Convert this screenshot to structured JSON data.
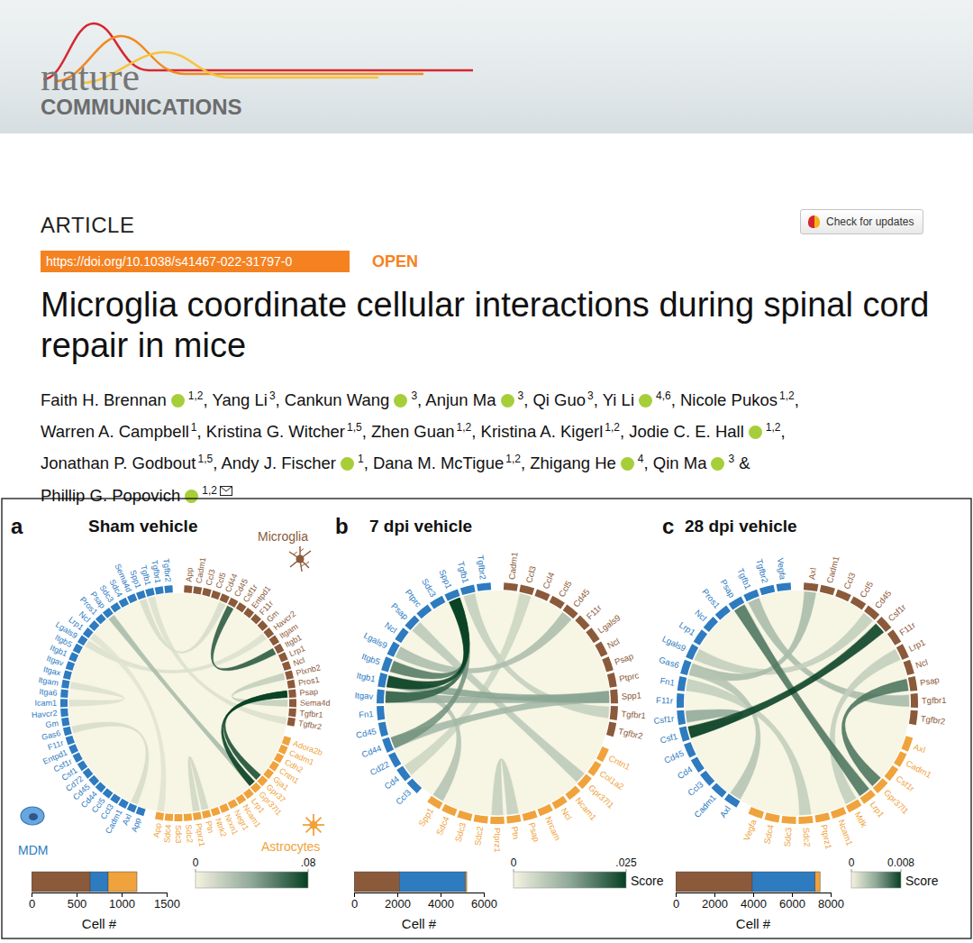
{
  "header": {
    "journal_name": "nature",
    "journal_subtitle": "COMMUNICATIONS",
    "article_type": "ARTICLE",
    "doi": "https://doi.org/10.1038/s41467-022-31797-0",
    "access": "OPEN",
    "update_button": "Check for updates",
    "title": "Microglia coordinate cellular interactions during spinal cord repair in mice",
    "authors": [
      {
        "name": "Faith H. Brennan",
        "orcid": true,
        "affiliations": "1,2"
      },
      {
        "name": "Yang Li",
        "orcid": false,
        "affiliations": "3"
      },
      {
        "name": "Cankun Wang",
        "orcid": true,
        "affiliations": "3"
      },
      {
        "name": "Anjun Ma",
        "orcid": true,
        "affiliations": "3"
      },
      {
        "name": "Qi Guo",
        "orcid": false,
        "affiliations": "3"
      },
      {
        "name": "Yi Li",
        "orcid": true,
        "affiliations": "4,6"
      },
      {
        "name": "Nicole Pukos",
        "orcid": false,
        "affiliations": "1,2"
      },
      {
        "name": "Warren A. Campbell",
        "orcid": false,
        "affiliations": "1"
      },
      {
        "name": "Kristina G. Witcher",
        "orcid": false,
        "affiliations": "1,5"
      },
      {
        "name": "Zhen Guan",
        "orcid": false,
        "affiliations": "1,2"
      },
      {
        "name": "Kristina A. Kigerl",
        "orcid": false,
        "affiliations": "1,2"
      },
      {
        "name": "Jodie C. E. Hall",
        "orcid": true,
        "affiliations": "1,2"
      },
      {
        "name": "Jonathan P. Godbout",
        "orcid": false,
        "affiliations": "1,5"
      },
      {
        "name": "Andy J. Fischer",
        "orcid": true,
        "affiliations": "1"
      },
      {
        "name": "Dana M. McTigue",
        "orcid": false,
        "affiliations": "1,2"
      },
      {
        "name": "Zhigang He",
        "orcid": true,
        "affiliations": "4"
      },
      {
        "name": "Qin Ma",
        "orcid": true,
        "affiliations": "3"
      },
      {
        "name": "Phillip G. Popovich",
        "orcid": true,
        "affiliations": "1,2",
        "corresponding": true
      }
    ],
    "author_separator": ", ",
    "final_separator": " & "
  },
  "chart_data": [
    {
      "type": "chord",
      "panel": "a",
      "title": "Sham vehicle",
      "groups": [
        {
          "name": "Microglia",
          "color": "#8b5a3a",
          "labels": [
            "App",
            "Cadm1",
            "Ccl3",
            "Ccl5",
            "Cd44",
            "Cd45",
            "Csf1r",
            "Entpd1",
            "F11r",
            "Gm",
            "Havcr2",
            "Itgam",
            "Itgb1",
            "Lrp1",
            "Ncl",
            "Plxnb2",
            "Pros1",
            "Psap",
            "Sema4d",
            "Tgfbr1",
            "Tgfbr2"
          ]
        },
        {
          "name": "Astrocytes",
          "color": "#f0a33c",
          "labels": [
            "Adora2b",
            "Cadm1",
            "Cdh2",
            "Cntn1",
            "Gja1",
            "Gpr37",
            "Gpr37l1",
            "Lrp1",
            "Ncam1",
            "Negr1",
            "Nrxn1",
            "Ntrk2",
            "Ptn",
            "Ptprz1",
            "Sdc2",
            "Sdc3",
            "Sdc4",
            "App"
          ]
        },
        {
          "name": "MDM",
          "color": "#2e7bbf",
          "labels": [
            "App",
            "Axl",
            "Cadm1",
            "Ccl3",
            "Ccl5",
            "Cd44",
            "Cd45",
            "Cd72",
            "Csf1",
            "Csf1r",
            "Entpd1",
            "F11r",
            "Gas6",
            "Gm",
            "Havcr2",
            "Icam1",
            "Itga6",
            "Itgam",
            "Itgax",
            "Itgav",
            "Itgb1",
            "Itgb5",
            "Lgals9",
            "Lrp1",
            "Ncl",
            "Pros1",
            "Psap",
            "Sdc3",
            "Sdc4",
            "Sema4d",
            "Spp1",
            "Tgfb1",
            "Tgfbr1",
            "Tgfbr2"
          ]
        }
      ],
      "links": [
        {
          "source": [
            2,
            30
          ],
          "target": [
            0,
            4
          ],
          "score": 0.012
        },
        {
          "source": [
            2,
            22
          ],
          "target": [
            0,
            10
          ],
          "score": 0.01
        },
        {
          "source": [
            2,
            23
          ],
          "target": [
            1,
            17
          ],
          "score": 0.008
        },
        {
          "source": [
            0,
            20
          ],
          "target": [
            2,
            31
          ],
          "score": 0.01
        },
        {
          "source": [
            2,
            12
          ],
          "target": [
            2,
            1
          ],
          "score": 0.012
        },
        {
          "source": [
            2,
            15
          ],
          "target": [
            2,
            17
          ],
          "score": 0.01
        },
        {
          "source": [
            1,
            12
          ],
          "target": [
            1,
            13
          ],
          "score": 0.015
        },
        {
          "source": [
            0,
            18
          ],
          "target": [
            0,
            15
          ],
          "score": 0.02
        },
        {
          "source": [
            2,
            26
          ],
          "target": [
            1,
            6
          ],
          "score": 0.03
        },
        {
          "source": [
            0,
            5
          ],
          "target": [
            0,
            12
          ],
          "score": 0.07
        },
        {
          "source": [
            0,
            17
          ],
          "target": [
            1,
            5
          ],
          "score": 0.075
        },
        {
          "source": [
            0,
            17
          ],
          "target": [
            1,
            6
          ],
          "score": 0.08
        }
      ],
      "cells": {
        "type": "bar",
        "orientation": "horizontal",
        "stacked": true,
        "xlabel": "Cell #",
        "values": [
          650,
          200,
          320
        ],
        "colors": [
          "#8b5a3a",
          "#2e7bbf",
          "#f0a33c"
        ],
        "xlim": [
          0,
          1500
        ],
        "xticks": [
          0,
          500,
          1000,
          1500
        ]
      },
      "score_scale": {
        "range": [
          0,
          0.08
        ],
        "ticks": [
          0,
          {
            "value": 0.08,
            "label": ".08"
          }
        ],
        "colors": [
          "#f5f3e0",
          "#8fa898",
          "#063f22"
        ]
      }
    },
    {
      "type": "chord",
      "panel": "b",
      "title": "7 dpi vehicle",
      "groups": [
        {
          "color": "#8b5a3a",
          "labels": [
            "Cadm1",
            "Ccl3",
            "Ccl4",
            "Ccl5",
            "Cd45",
            "F11r",
            "Lgals9",
            "Ncl",
            "Psap",
            "Ptprc",
            "Spp1",
            "Tgfbr1",
            "Tgfbr2"
          ]
        },
        {
          "color": "#f0a33c",
          "labels": [
            "Cntn1",
            "Col1a2",
            "Gpr37l1",
            "Ncam1",
            "Ncl",
            "Nrcam",
            "Psap",
            "Ptn",
            "Ptprz1",
            "Sdc2",
            "Sdc3",
            "Sdc4",
            "Spp1"
          ]
        },
        {
          "color": "#2e7bbf",
          "labels": [
            "Ccl3",
            "Cd4",
            "Cd22",
            "Cd44",
            "Cd45",
            "Fn1",
            "Itgav",
            "Itgb1",
            "Itgb5",
            "Lgals9",
            "Ncl",
            "Psap",
            "Ptprc",
            "Sdc3",
            "Spp1",
            "Tgfb1",
            "Tgfbr2"
          ]
        }
      ],
      "links": [
        {
          "source": [
            2,
            15
          ],
          "target": [
            0,
            11
          ],
          "score": 0.006
        },
        {
          "source": [
            1,
            8
          ],
          "target": [
            1,
            7
          ],
          "score": 0.006
        },
        {
          "source": [
            2,
            1
          ],
          "target": [
            0,
            1
          ],
          "score": 0.005
        },
        {
          "source": [
            2,
            9
          ],
          "target": [
            0,
            4
          ],
          "score": 0.009
        },
        {
          "source": [
            1,
            12
          ],
          "target": [
            2,
            7
          ],
          "score": 0.008
        },
        {
          "source": [
            2,
            11
          ],
          "target": [
            1,
            2
          ],
          "score": 0.007
        },
        {
          "source": [
            0,
            10
          ],
          "target": [
            2,
            3
          ],
          "score": 0.01
        },
        {
          "source": [
            0,
            10
          ],
          "target": [
            2,
            6
          ],
          "score": 0.011
        },
        {
          "source": [
            0,
            10
          ],
          "target": [
            2,
            7
          ],
          "score": 0.013
        },
        {
          "source": [
            2,
            14
          ],
          "target": [
            2,
            3
          ],
          "score": 0.015
        },
        {
          "source": [
            2,
            14
          ],
          "target": [
            2,
            8
          ],
          "score": 0.018
        },
        {
          "source": [
            2,
            14
          ],
          "target": [
            2,
            6
          ],
          "score": 0.021
        },
        {
          "source": [
            2,
            14
          ],
          "target": [
            2,
            7
          ],
          "score": 0.025
        }
      ],
      "cells": {
        "type": "bar",
        "orientation": "horizontal",
        "stacked": true,
        "xlabel": "Cell #",
        "values": [
          2100,
          3050,
          60
        ],
        "colors": [
          "#8b5a3a",
          "#2e7bbf",
          "#f0a33c"
        ],
        "xlim": [
          0,
          6000
        ],
        "xticks": [
          0,
          2000,
          4000,
          6000
        ]
      },
      "score_scale": {
        "label": "Score",
        "range": [
          0,
          0.025
        ],
        "ticks": [
          0,
          {
            "value": 0.025,
            "label": ".025"
          }
        ],
        "colors": [
          "#f5f3e0",
          "#8fa898",
          "#063f22"
        ]
      }
    },
    {
      "type": "chord",
      "panel": "c",
      "title": "28 dpi vehicle",
      "groups": [
        {
          "color": "#8b5a3a",
          "labels": [
            "Axl",
            "Cadm1",
            "Ccl3",
            "Ccl5",
            "Cd45",
            "Csf1r",
            "F11r",
            "Lrp1",
            "Ncl",
            "Psap",
            "Tgfbr1",
            "Tgfbr2"
          ]
        },
        {
          "color": "#f0a33c",
          "labels": [
            "Axl",
            "Cadm1",
            "Csf1r",
            "Gpr37l1",
            "Lrp1",
            "Mdk",
            "Ncam1",
            "Ptprz1",
            "Sdc2",
            "Sdc3",
            "Sdc4",
            "Vegfa"
          ]
        },
        {
          "color": "#2e7bbf",
          "labels": [
            "Axl",
            "Cadm1",
            "Ccl3",
            "Cd4",
            "Cd45",
            "Csf1",
            "Csf1r",
            "F11r",
            "Fn1",
            "Gas6",
            "Lgals9",
            "Lrp1",
            "Ncl",
            "Pros1",
            "Psap",
            "Tgfb1",
            "Tgfbr2",
            "Vegfa"
          ]
        }
      ],
      "links": [
        {
          "source": [
            2,
            15
          ],
          "target": [
            0,
            10
          ],
          "score": 0.003
        },
        {
          "source": [
            2,
            10
          ],
          "target": [
            0,
            4
          ],
          "score": 0.002
        },
        {
          "source": [
            1,
            5
          ],
          "target": [
            0,
            7
          ],
          "score": 0.002
        },
        {
          "source": [
            2,
            8
          ],
          "target": [
            1,
            8
          ],
          "score": 0.002
        },
        {
          "source": [
            2,
            9
          ],
          "target": [
            0,
            0
          ],
          "score": 0.003
        },
        {
          "source": [
            2,
            9
          ],
          "target": [
            2,
            0
          ],
          "score": 0.0025
        },
        {
          "source": [
            2,
            5
          ],
          "target": [
            2,
            6
          ],
          "score": 0.004
        },
        {
          "source": [
            0,
            9
          ],
          "target": [
            1,
            3
          ],
          "score": 0.006
        },
        {
          "source": [
            2,
            14
          ],
          "target": [
            1,
            4
          ],
          "score": 0.006
        },
        {
          "source": [
            0,
            5
          ],
          "target": [
            2,
            5
          ],
          "score": 0.008
        }
      ],
      "cells": {
        "type": "bar",
        "orientation": "horizontal",
        "stacked": true,
        "xlabel": "Cell #",
        "values": [
          3950,
          3250,
          250
        ],
        "colors": [
          "#8b5a3a",
          "#2e7bbf",
          "#f0a33c"
        ],
        "xlim": [
          0,
          8000
        ],
        "xticks": [
          0,
          2000,
          4000,
          6000,
          8000
        ]
      },
      "score_scale": {
        "label": "Score",
        "range": [
          0,
          0.008
        ],
        "ticks": [
          0,
          0.008
        ],
        "colors": [
          "#f5f3e0",
          "#8fa898",
          "#063f22"
        ]
      }
    }
  ]
}
